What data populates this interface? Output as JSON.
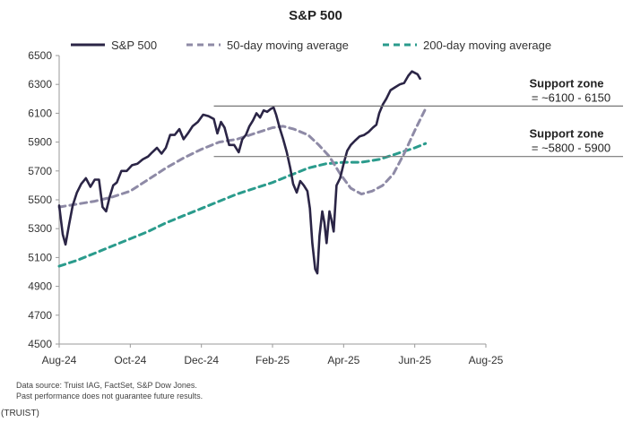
{
  "chart_data": {
    "type": "line",
    "title": "S&P 500",
    "xlabel": "",
    "ylabel": "",
    "x_tick_labels": [
      "Aug-24",
      "Oct-24",
      "Dec-24",
      "Feb-25",
      "Apr-25",
      "Jun-25",
      "Aug-25"
    ],
    "x_range_months": [
      0,
      12
    ],
    "ylim": [
      4500,
      6500
    ],
    "y_ticks": [
      4500,
      4700,
      4900,
      5100,
      5300,
      5500,
      5700,
      5900,
      6100,
      6300,
      6500
    ],
    "legend_position": "top",
    "series": [
      {
        "name": "S&P 500",
        "color": "#2b2546",
        "style": "solid",
        "points": [
          [
            0.0,
            5460
          ],
          [
            0.1,
            5260
          ],
          [
            0.18,
            5190
          ],
          [
            0.28,
            5330
          ],
          [
            0.38,
            5460
          ],
          [
            0.5,
            5550
          ],
          [
            0.62,
            5610
          ],
          [
            0.75,
            5650
          ],
          [
            0.88,
            5590
          ],
          [
            1.0,
            5640
          ],
          [
            1.12,
            5640
          ],
          [
            1.22,
            5450
          ],
          [
            1.32,
            5420
          ],
          [
            1.42,
            5520
          ],
          [
            1.52,
            5600
          ],
          [
            1.62,
            5620
          ],
          [
            1.75,
            5700
          ],
          [
            1.9,
            5700
          ],
          [
            2.05,
            5740
          ],
          [
            2.2,
            5750
          ],
          [
            2.35,
            5780
          ],
          [
            2.5,
            5800
          ],
          [
            2.62,
            5830
          ],
          [
            2.75,
            5860
          ],
          [
            2.88,
            5820
          ],
          [
            3.0,
            5860
          ],
          [
            3.12,
            5950
          ],
          [
            3.25,
            5950
          ],
          [
            3.38,
            5990
          ],
          [
            3.5,
            5920
          ],
          [
            3.62,
            5960
          ],
          [
            3.75,
            6010
          ],
          [
            3.9,
            6040
          ],
          [
            4.05,
            6090
          ],
          [
            4.2,
            6080
          ],
          [
            4.35,
            6060
          ],
          [
            4.45,
            5960
          ],
          [
            4.55,
            6040
          ],
          [
            4.65,
            6000
          ],
          [
            4.78,
            5880
          ],
          [
            4.92,
            5880
          ],
          [
            5.05,
            5830
          ],
          [
            5.15,
            5920
          ],
          [
            5.25,
            5950
          ],
          [
            5.35,
            6010
          ],
          [
            5.45,
            6050
          ],
          [
            5.55,
            6100
          ],
          [
            5.65,
            6070
          ],
          [
            5.75,
            6120
          ],
          [
            5.85,
            6110
          ],
          [
            5.95,
            6130
          ],
          [
            6.03,
            6140
          ],
          [
            6.1,
            6090
          ],
          [
            6.2,
            6000
          ],
          [
            6.3,
            5920
          ],
          [
            6.4,
            5830
          ],
          [
            6.5,
            5720
          ],
          [
            6.58,
            5610
          ],
          [
            6.68,
            5550
          ],
          [
            6.78,
            5630
          ],
          [
            6.88,
            5600
          ],
          [
            6.98,
            5560
          ],
          [
            7.05,
            5440
          ],
          [
            7.12,
            5200
          ],
          [
            7.2,
            5020
          ],
          [
            7.26,
            4990
          ],
          [
            7.32,
            5250
          ],
          [
            7.4,
            5420
          ],
          [
            7.46,
            5340
          ],
          [
            7.52,
            5200
          ],
          [
            7.6,
            5420
          ],
          [
            7.66,
            5360
          ],
          [
            7.72,
            5280
          ],
          [
            7.8,
            5600
          ],
          [
            7.9,
            5650
          ],
          [
            8.0,
            5750
          ],
          [
            8.1,
            5840
          ],
          [
            8.2,
            5880
          ],
          [
            8.32,
            5910
          ],
          [
            8.45,
            5940
          ],
          [
            8.58,
            5950
          ],
          [
            8.7,
            5970
          ],
          [
            8.82,
            6000
          ],
          [
            8.92,
            6020
          ],
          [
            9.0,
            6100
          ],
          [
            9.1,
            6160
          ],
          [
            9.2,
            6200
          ],
          [
            9.32,
            6260
          ],
          [
            9.45,
            6280
          ],
          [
            9.58,
            6300
          ],
          [
            9.7,
            6310
          ],
          [
            9.82,
            6360
          ],
          [
            9.92,
            6390
          ],
          [
            10.0,
            6380
          ],
          [
            10.08,
            6370
          ],
          [
            10.15,
            6340
          ]
        ]
      },
      {
        "name": "50-day moving average",
        "color": "#8e8aa6",
        "style": "dashed",
        "points": [
          [
            0.0,
            5450
          ],
          [
            0.5,
            5470
          ],
          [
            1.0,
            5490
          ],
          [
            1.5,
            5520
          ],
          [
            2.0,
            5560
          ],
          [
            2.5,
            5640
          ],
          [
            3.0,
            5720
          ],
          [
            3.5,
            5790
          ],
          [
            4.0,
            5850
          ],
          [
            4.5,
            5900
          ],
          [
            5.0,
            5920
          ],
          [
            5.5,
            5960
          ],
          [
            6.0,
            6000
          ],
          [
            6.3,
            6010
          ],
          [
            6.6,
            5990
          ],
          [
            7.0,
            5950
          ],
          [
            7.3,
            5880
          ],
          [
            7.6,
            5800
          ],
          [
            7.9,
            5680
          ],
          [
            8.2,
            5580
          ],
          [
            8.5,
            5540
          ],
          [
            8.8,
            5560
          ],
          [
            9.1,
            5600
          ],
          [
            9.4,
            5680
          ],
          [
            9.7,
            5820
          ],
          [
            10.0,
            5980
          ],
          [
            10.2,
            6080
          ],
          [
            10.3,
            6130
          ]
        ]
      },
      {
        "name": "200-day moving average",
        "color": "#2a9b8c",
        "style": "dashed",
        "points": [
          [
            0.0,
            5040
          ],
          [
            0.5,
            5080
          ],
          [
            1.0,
            5130
          ],
          [
            1.5,
            5180
          ],
          [
            2.0,
            5230
          ],
          [
            2.5,
            5280
          ],
          [
            3.0,
            5340
          ],
          [
            3.5,
            5390
          ],
          [
            4.0,
            5440
          ],
          [
            4.5,
            5490
          ],
          [
            5.0,
            5540
          ],
          [
            5.5,
            5580
          ],
          [
            6.0,
            5620
          ],
          [
            6.5,
            5670
          ],
          [
            7.0,
            5720
          ],
          [
            7.5,
            5750
          ],
          [
            8.0,
            5760
          ],
          [
            8.5,
            5760
          ],
          [
            9.0,
            5780
          ],
          [
            9.5,
            5820
          ],
          [
            10.0,
            5860
          ],
          [
            10.3,
            5890
          ]
        ]
      }
    ],
    "annotations": [
      {
        "label": "Support zone",
        "value_label": "= ~6100 - 6150",
        "y": 6150
      },
      {
        "label": "Support zone",
        "value_label": "= ~5800 - 5900",
        "y": 5800
      }
    ],
    "annotation_line_start_month": 4.35,
    "source_lines": [
      "Data source: Truist IAG, FactSet, S&P Dow Jones.",
      "Past performance does not guarantee future results."
    ],
    "credit": "(TRUIST)"
  }
}
